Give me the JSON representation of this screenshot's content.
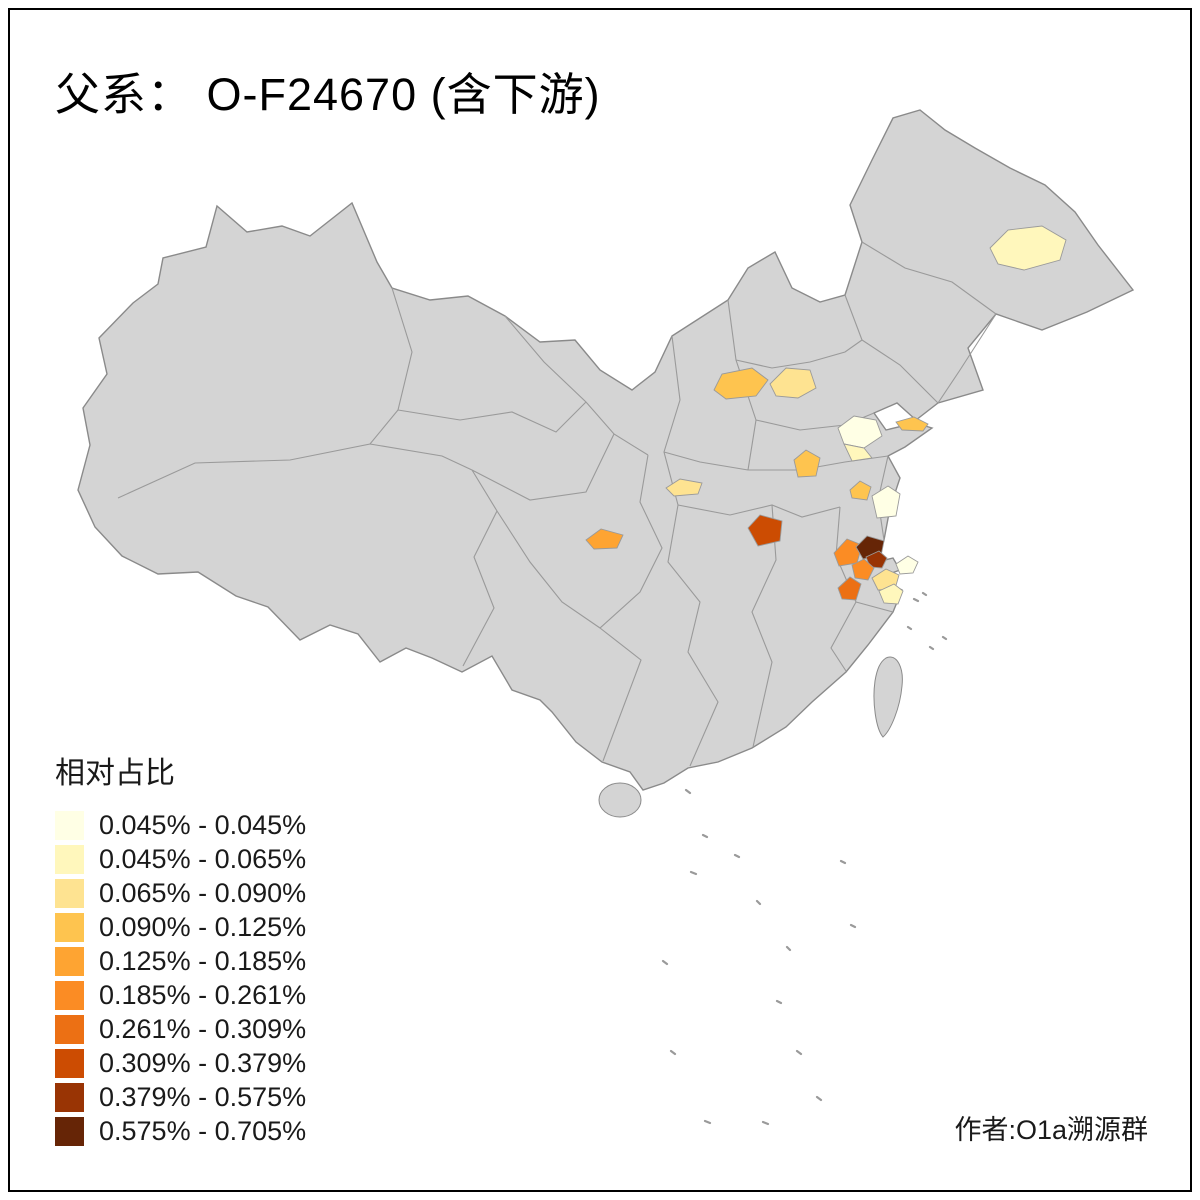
{
  "page": {
    "title": "父系： O-F24670 (含下游)",
    "attribution": "作者:O1a溯源群",
    "background": "#FFFFFF",
    "frame_color": "#000000"
  },
  "legend": {
    "title": "相对占比",
    "items": [
      {
        "label": "0.045% - 0.045%",
        "color": "#FFFFE5"
      },
      {
        "label": "0.045% - 0.065%",
        "color": "#FFF7BC"
      },
      {
        "label": "0.065% - 0.090%",
        "color": "#FEE391"
      },
      {
        "label": "0.090% - 0.125%",
        "color": "#FEC44F"
      },
      {
        "label": "0.125% - 0.185%",
        "color": "#FEA432"
      },
      {
        "label": "0.185% - 0.261%",
        "color": "#FB8C24"
      },
      {
        "label": "0.261% - 0.309%",
        "color": "#EC7014"
      },
      {
        "label": "0.309% - 0.379%",
        "color": "#CC4C02"
      },
      {
        "label": "0.379% - 0.575%",
        "color": "#993404"
      },
      {
        "label": "0.575% - 0.705%",
        "color": "#662506"
      }
    ]
  },
  "map": {
    "land_color": "#D4D4D4",
    "province_border_color": "#9A9A9A",
    "outline_color": "#8A8A8A",
    "regions": [
      {
        "id": "northeast",
        "color": "#FFF7BC"
      },
      {
        "id": "north-1",
        "color": "#FEC44F"
      },
      {
        "id": "north-2",
        "color": "#FEE391"
      },
      {
        "id": "shandong-1",
        "color": "#FFFFE5"
      },
      {
        "id": "shandong-2",
        "color": "#FFF7BC"
      },
      {
        "id": "shandong-peninsula",
        "color": "#FEC44F"
      },
      {
        "id": "central-1",
        "color": "#FEC44F"
      },
      {
        "id": "central-west",
        "color": "#FEE391"
      },
      {
        "id": "east-1",
        "color": "#FEC44F"
      },
      {
        "id": "east-2",
        "color": "#FFFFE5"
      },
      {
        "id": "sichuan-strip",
        "color": "#FEA432"
      },
      {
        "id": "hubei-dark",
        "color": "#CC4C02"
      },
      {
        "id": "anhui-1",
        "color": "#FB8C24"
      },
      {
        "id": "anhui-2-darkest",
        "color": "#662506"
      },
      {
        "id": "anhui-3",
        "color": "#993404"
      },
      {
        "id": "anhui-4",
        "color": "#FB8C24"
      },
      {
        "id": "anhui-5",
        "color": "#EC7014"
      },
      {
        "id": "zhejiang-1",
        "color": "#FEE391"
      },
      {
        "id": "zhejiang-2",
        "color": "#FFF7BC"
      },
      {
        "id": "shanghai-area",
        "color": "#FFFFE5"
      }
    ]
  },
  "chart_data": {
    "type": "choropleth",
    "title": "父系： O-F24670 (含下游)",
    "legend_title": "相对占比",
    "map_area": "China",
    "bins": [
      {
        "range": "0.045% - 0.045%",
        "color": "#FFFFE5"
      },
      {
        "range": "0.045% - 0.065%",
        "color": "#FFF7BC"
      },
      {
        "range": "0.065% - 0.090%",
        "color": "#FEE391"
      },
      {
        "range": "0.090% - 0.125%",
        "color": "#FEC44F"
      },
      {
        "range": "0.125% - 0.185%",
        "color": "#FEA432"
      },
      {
        "range": "0.185% - 0.261%",
        "color": "#FB8C24"
      },
      {
        "range": "0.261% - 0.309%",
        "color": "#EC7014"
      },
      {
        "range": "0.309% - 0.379%",
        "color": "#CC4C02"
      },
      {
        "range": "0.379% - 0.575%",
        "color": "#993404"
      },
      {
        "range": "0.575% - 0.705%",
        "color": "#662506"
      }
    ],
    "highlighted_region_colors": [
      "#FFF7BC",
      "#FEC44F",
      "#FEE391",
      "#FFFFE5",
      "#FFF7BC",
      "#FEC44F",
      "#FEC44F",
      "#FEE391",
      "#FEC44F",
      "#FFFFE5",
      "#FEA432",
      "#CC4C02",
      "#FB8C24",
      "#662506",
      "#993404",
      "#FB8C24",
      "#EC7014",
      "#FEE391",
      "#FFF7BC",
      "#FFFFE5"
    ]
  }
}
